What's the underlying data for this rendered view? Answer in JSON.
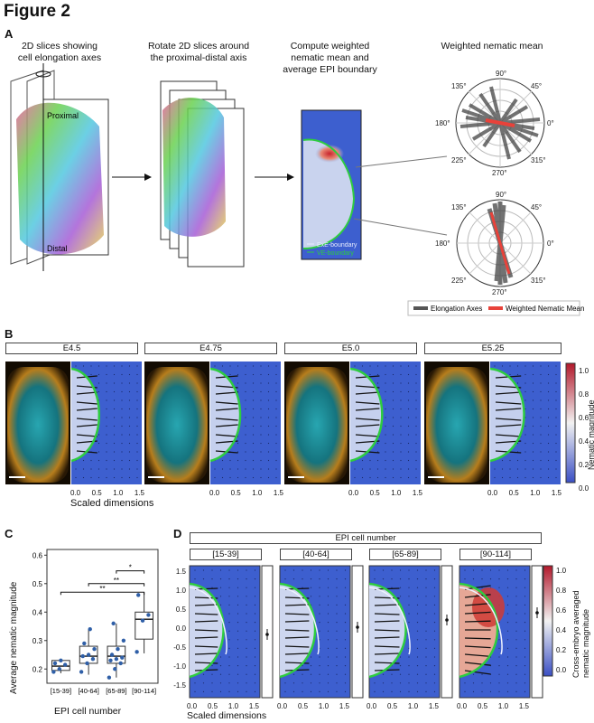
{
  "figure_title": "Figure 2",
  "panel_A": {
    "letter": "A",
    "step1_caption": [
      "2D slices showing",
      "cell elongation axes"
    ],
    "step2_caption": [
      "Rotate 2D slices around",
      "the proximal-distal axis"
    ],
    "step3_caption": [
      "Compute weighted",
      "nematic mean and",
      "average EPI boundary"
    ],
    "step4_caption": "Weighted nematic mean",
    "label_proximal": "Proximal",
    "label_distal": "Distal",
    "boundary_exe": "ExE-boundary",
    "boundary_ve": "VE-boundary",
    "polar_angles": [
      "90°",
      "45°",
      "0°",
      "315°",
      "270°",
      "225°",
      "180°",
      "135°"
    ],
    "legend_elongation": "Elongation Axes",
    "legend_nematic": "Weighted Nematic Mean",
    "colors": {
      "elongation": "#555555",
      "nematic": "#e8423a"
    }
  },
  "panel_B": {
    "letter": "B",
    "stages": [
      "E4.5",
      "E4.75",
      "E5.0",
      "E5.25"
    ],
    "x_ticks": [
      "0.0",
      "0.5",
      "1.0",
      "1.5"
    ],
    "xlabel": "Scaled dimensions",
    "colorbar_label": "Nematic magnitude",
    "colorbar_ticks": [
      "1.0",
      "0.8",
      "0.6",
      "0.4",
      "0.2",
      "0.0"
    ]
  },
  "panel_C": {
    "letter": "C",
    "ylabel": "Average nematic magnitude",
    "xlabel": "EPI cell number",
    "y_ticks": [
      "0.6",
      "0.5",
      "0.4",
      "0.3",
      "0.2"
    ],
    "significance": [
      "*",
      "**",
      "**"
    ]
  },
  "panel_D": {
    "letter": "D",
    "header": "EPI cell number",
    "groups": [
      "[15-39]",
      "[40-64]",
      "[65-89]",
      "[90-114]"
    ],
    "y_ticks": [
      "1.5",
      "1.0",
      "0.5",
      "0.0",
      "-0.5",
      "-1.0",
      "-1.5"
    ],
    "x_ticks": [
      "0.0",
      "0.5",
      "1.0",
      "1.5"
    ],
    "xlabel": "Scaled dimensions",
    "colorbar_label": [
      "Cross-embryo averaged",
      "nematic magnitude"
    ],
    "colorbar_ticks": [
      "1.0",
      "0.8",
      "0.6",
      "0.4",
      "0.2",
      "0.0"
    ]
  },
  "chart_data": [
    {
      "type": "box",
      "title": "",
      "xlabel": "EPI cell number",
      "ylabel": "Average nematic magnitude",
      "ylim": [
        0.15,
        0.62
      ],
      "categories": [
        "[15-39]",
        "[40-64]",
        "[65-89]",
        "[90-114]"
      ],
      "boxes": [
        {
          "q1": 0.195,
          "median": 0.21,
          "q3": 0.23,
          "whisker_low": 0.185,
          "whisker_high": 0.235
        },
        {
          "q1": 0.22,
          "median": 0.245,
          "q3": 0.28,
          "whisker_low": 0.18,
          "whisker_high": 0.34
        },
        {
          "q1": 0.22,
          "median": 0.245,
          "q3": 0.28,
          "whisker_low": 0.17,
          "whisker_high": 0.36
        },
        {
          "q1": 0.305,
          "median": 0.375,
          "q3": 0.4,
          "whisker_low": 0.255,
          "whisker_high": 0.47
        }
      ],
      "points": [
        [
          0.19,
          0.2,
          0.215,
          0.22,
          0.23
        ],
        [
          0.19,
          0.22,
          0.235,
          0.245,
          0.25,
          0.27,
          0.29,
          0.34
        ],
        [
          0.17,
          0.2,
          0.22,
          0.23,
          0.235,
          0.24,
          0.25,
          0.27,
          0.3,
          0.36
        ],
        [
          0.26,
          0.37,
          0.39,
          0.46
        ]
      ],
      "significance_brackets": [
        {
          "from": "[65-89]",
          "to": "[90-114]",
          "label": "*"
        },
        {
          "from": "[40-64]",
          "to": "[90-114]",
          "label": "**"
        },
        {
          "from": "[15-39]",
          "to": "[90-114]",
          "label": "**"
        }
      ]
    }
  ]
}
